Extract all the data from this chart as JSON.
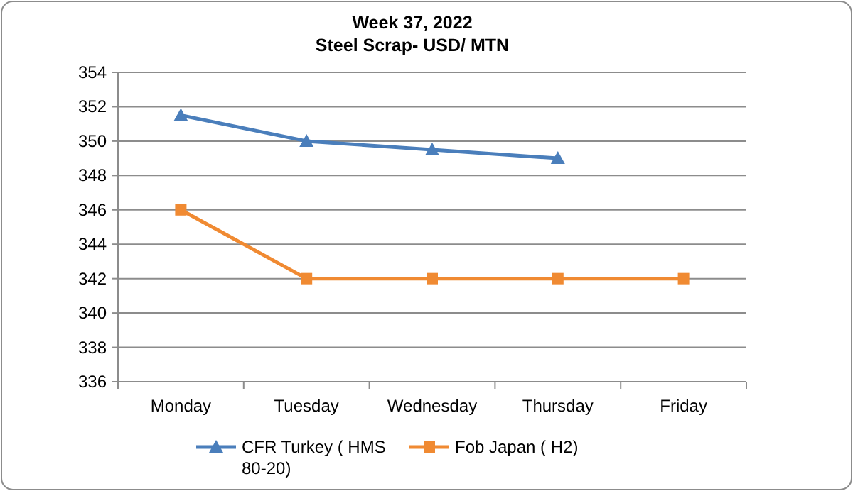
{
  "chart_data": {
    "type": "line",
    "title": "Week 37, 2022",
    "subtitle": "Steel Scrap- USD/ MTN",
    "categories": [
      "Monday",
      "Tuesday",
      "Wednesday",
      "Thursday",
      "Friday"
    ],
    "series": [
      {
        "name": "CFR Turkey ( HMS 80-20)",
        "color": "#4a7ebb",
        "marker": "triangle",
        "values": [
          351.5,
          350,
          349.5,
          349,
          null
        ]
      },
      {
        "name": "Fob Japan ( H2)",
        "color": "#f08a32",
        "marker": "square",
        "values": [
          346,
          342,
          342,
          342,
          342
        ]
      }
    ],
    "ylim": [
      336,
      354
    ],
    "yticks": [
      336,
      338,
      340,
      342,
      344,
      346,
      348,
      350,
      352,
      354
    ],
    "grid": "y",
    "legend": "bottom",
    "line_style": "solid"
  }
}
